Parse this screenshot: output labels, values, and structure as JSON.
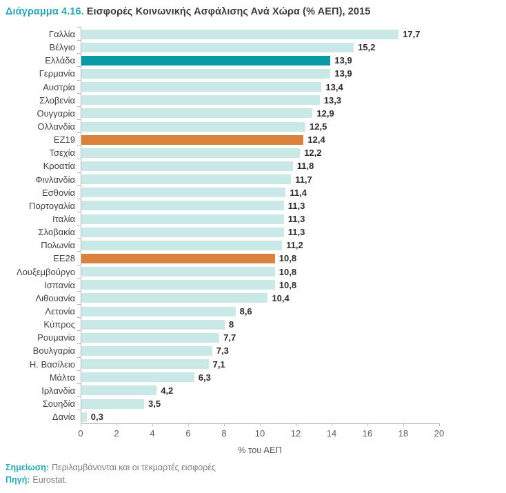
{
  "title": {
    "prefix": "Διάγραμμα 4.16.",
    "text": "Εισφορές Κοινωνικής Ασφάλισης Ανά Χώρα (% ΑΕΠ), 2015"
  },
  "chart_data": {
    "type": "bar",
    "orientation": "horizontal",
    "title": "Εισφορές Κοινωνικής Ασφάλισης Ανά Χώρα (% ΑΕΠ), 2015",
    "xlabel": "% του ΑΕΠ",
    "ylabel": "",
    "xlim": [
      0,
      20
    ],
    "xticks": [
      0,
      2,
      4,
      6,
      8,
      10,
      12,
      14,
      16,
      18,
      20
    ],
    "grid": false,
    "legend": false,
    "categories": [
      "Γαλλία",
      "Βέλγιο",
      "Ελλάδα",
      "Γερμανία",
      "Αυστρία",
      "Σλοβενία",
      "Ουγγαρία",
      "Ολλανδία",
      "ΕΖ19",
      "Τσεχία",
      "Κροατία",
      "Φινλανδία",
      "Εσθονία",
      "Πορτογαλία",
      "Ιταλία",
      "Σλοβακία",
      "Πολωνία",
      "ΕΕ28",
      "Λουξεμβούργο",
      "Ισπανία",
      "Λιθουανία",
      "Λετονία",
      "Κύπρος",
      "Ρουμανία",
      "Βουλγαρία",
      "Η. Βασίλειο",
      "Μάλτα",
      "Ιρλανδία",
      "Σουηδία",
      "Δανία"
    ],
    "values": [
      17.7,
      15.2,
      13.9,
      13.9,
      13.4,
      13.3,
      12.9,
      12.5,
      12.4,
      12.2,
      11.8,
      11.7,
      11.4,
      11.3,
      11.3,
      11.3,
      11.2,
      10.8,
      10.8,
      10.8,
      10.4,
      8.6,
      8,
      7.7,
      7.3,
      7.1,
      6.3,
      4.2,
      3.5,
      0.3
    ],
    "value_labels": [
      "17,7",
      "15,2",
      "13,9",
      "13,9",
      "13,4",
      "13,3",
      "12,9",
      "12,5",
      "12,4",
      "12,2",
      "11,8",
      "11,7",
      "11,4",
      "11,3",
      "11,3",
      "11,3",
      "11,2",
      "10,8",
      "10,8",
      "10,8",
      "10,4",
      "8,6",
      "8",
      "7,7",
      "7,3",
      "7,1",
      "6,3",
      "4,2",
      "3,5",
      "0,3"
    ],
    "bar_types": [
      "default",
      "default",
      "highlight",
      "default",
      "default",
      "default",
      "default",
      "default",
      "aggregate",
      "default",
      "default",
      "default",
      "default",
      "default",
      "default",
      "default",
      "default",
      "aggregate",
      "default",
      "default",
      "default",
      "default",
      "default",
      "default",
      "default",
      "default",
      "default",
      "default",
      "default",
      "default"
    ],
    "highlight_category": "Ελλάδα",
    "aggregate_categories": [
      "ΕΖ19",
      "ΕΕ28"
    ],
    "colors": {
      "default": "#c9e8e6",
      "highlight": "#0899a6",
      "aggregate": "#d9823c",
      "axis": "#b6b6b6",
      "title_accent": "#2aa6b2"
    }
  },
  "footer": {
    "note_label": "Σημείωση:",
    "note_text": "Περιλαμβάνονται και οι τεκμαρτές εισφορές",
    "source_label": "Πηγή:",
    "source_text": "Eurostat."
  }
}
